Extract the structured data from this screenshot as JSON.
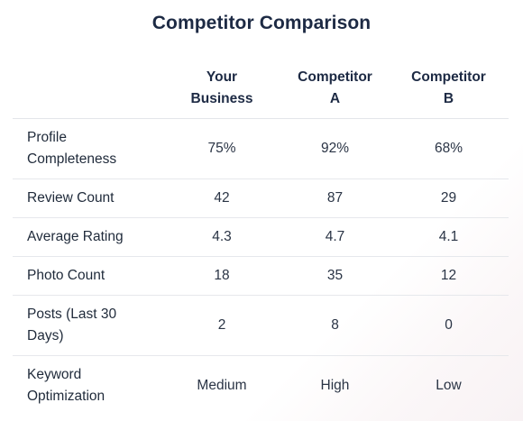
{
  "title": "Competitor Comparison",
  "table": {
    "headers": [
      "",
      "Your\nBusiness",
      "Competitor\nA",
      "Competitor\nB"
    ],
    "header_lines": [
      [],
      [
        "Your",
        "Business"
      ],
      [
        "Competitor",
        "A"
      ],
      [
        "Competitor",
        "B"
      ]
    ],
    "rows": [
      {
        "metric": "Profile Completeness",
        "metric_lines": [
          "Profile",
          "Completeness"
        ],
        "values": [
          "75%",
          "92%",
          "68%"
        ]
      },
      {
        "metric": "Review Count",
        "metric_lines": [
          "Review Count"
        ],
        "values": [
          "42",
          "87",
          "29"
        ]
      },
      {
        "metric": "Average Rating",
        "metric_lines": [
          "Average Rating"
        ],
        "values": [
          "4.3",
          "4.7",
          "4.1"
        ]
      },
      {
        "metric": "Photo Count",
        "metric_lines": [
          "Photo Count"
        ],
        "values": [
          "18",
          "35",
          "12"
        ]
      },
      {
        "metric": "Posts (Last 30 Days)",
        "metric_lines": [
          "Posts (Last 30",
          "Days)"
        ],
        "values": [
          "2",
          "8",
          "0"
        ]
      },
      {
        "metric": "Keyword Optimization",
        "metric_lines": [
          "Keyword",
          "Optimization"
        ],
        "values": [
          "Medium",
          "High",
          "Low"
        ]
      }
    ]
  }
}
